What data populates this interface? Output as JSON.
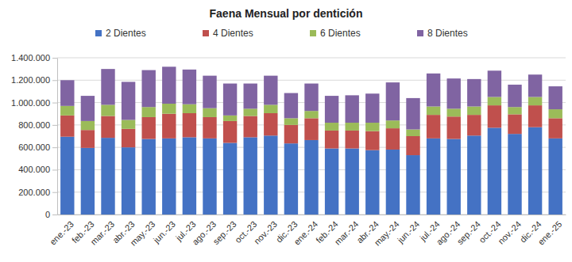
{
  "chart_data": {
    "type": "bar",
    "title": "Faena Mensual por dentición",
    "stacked": true,
    "grid": true,
    "legend": "top",
    "categories": [
      "ene.-23",
      "feb.-23",
      "mar.-23",
      "abr.-23",
      "may.-23",
      "jun.-23",
      "jul.-23",
      "ago.-23",
      "sep.-23",
      "oct.-23",
      "nov.-23",
      "dic.-23",
      "ene.-24",
      "feb.-24",
      "mar.-24",
      "abr.-24",
      "may.-24",
      "jun.-24",
      "jul.-24",
      "ago.-24",
      "sep.-24",
      "oct.-24",
      "nov.-24",
      "dic.-24",
      "ene.-25"
    ],
    "series": [
      {
        "name": "2 Dientes",
        "color": "#4472c4",
        "values": [
          695000,
          595000,
          685000,
          600000,
          675000,
          680000,
          690000,
          680000,
          640000,
          690000,
          705000,
          635000,
          665000,
          590000,
          590000,
          575000,
          580000,
          530000,
          680000,
          675000,
          705000,
          775000,
          720000,
          780000,
          680000
        ]
      },
      {
        "name": "4 Dientes",
        "color": "#c0504d",
        "values": [
          190000,
          160000,
          195000,
          165000,
          195000,
          220000,
          215000,
          190000,
          195000,
          190000,
          200000,
          165000,
          195000,
          160000,
          160000,
          170000,
          190000,
          170000,
          210000,
          200000,
          185000,
          200000,
          175000,
          195000,
          180000
        ]
      },
      {
        "name": "6 Dientes",
        "color": "#9bbb59",
        "values": [
          85000,
          80000,
          100000,
          80000,
          90000,
          90000,
          80000,
          80000,
          50000,
          65000,
          75000,
          60000,
          65000,
          70000,
          70000,
          75000,
          70000,
          60000,
          75000,
          70000,
          75000,
          75000,
          65000,
          75000,
          80000
        ]
      },
      {
        "name": "8 Dientes",
        "color": "#8064a2",
        "values": [
          230000,
          225000,
          320000,
          340000,
          330000,
          330000,
          310000,
          290000,
          285000,
          225000,
          260000,
          225000,
          245000,
          240000,
          245000,
          260000,
          340000,
          280000,
          295000,
          270000,
          245000,
          235000,
          200000,
          200000,
          205000
        ]
      }
    ],
    "ylim": [
      0,
      1400000
    ],
    "yticks": [
      0,
      {
        "value": 200000,
        "label": "200.000"
      },
      {
        "value": 400000,
        "label": "400.000"
      },
      {
        "value": 600000,
        "label": "600.000"
      },
      {
        "value": 800000,
        "label": "800.000"
      },
      {
        "value": 1000000,
        "label": "1.000.000"
      },
      {
        "value": 1200000,
        "label": "1.200.000"
      },
      {
        "value": 1400000,
        "label": "1.400.000"
      }
    ]
  }
}
